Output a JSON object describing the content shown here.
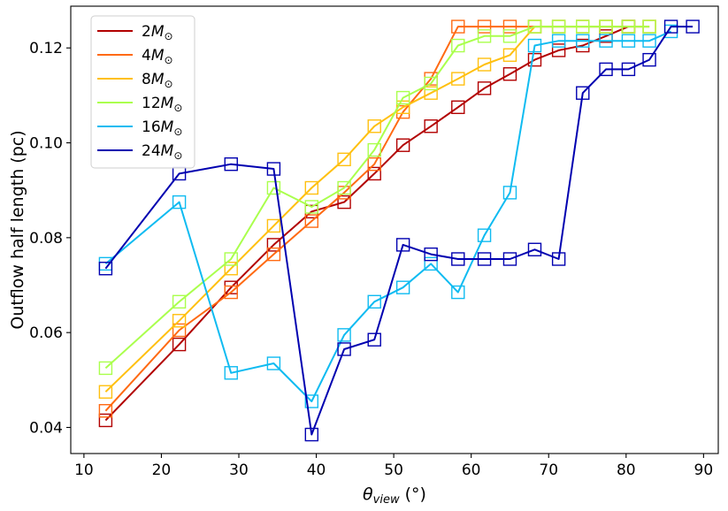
{
  "chart_data": {
    "type": "line",
    "title": "",
    "xlabel": {
      "main": "θ",
      "sub": "view",
      "unit": " (°)"
    },
    "ylabel": "Outflow half length (pc)",
    "xlim": [
      8.3,
      91.9
    ],
    "ylim": [
      0.0345,
      0.1288
    ],
    "xticks": [
      10,
      20,
      30,
      40,
      50,
      60,
      70,
      80,
      90
    ],
    "xtick_labels": [
      "10",
      "20",
      "30",
      "40",
      "50",
      "60",
      "70",
      "80",
      "90"
    ],
    "yticks": [
      0.04,
      0.06,
      0.08,
      0.1,
      0.12
    ],
    "ytick_labels": [
      "0.04",
      "0.06",
      "0.08",
      "0.10",
      "0.12"
    ],
    "grid": false,
    "legend_position": "upper-left",
    "marker": "hollow-square",
    "series": [
      {
        "name": "2",
        "label_suffix": "M⊙",
        "color": "#b20000",
        "x": [
          12.8,
          22.3,
          29.0,
          34.5,
          39.4,
          43.6,
          47.5,
          51.2,
          54.8,
          58.3,
          61.7,
          65.0,
          68.2,
          71.3,
          74.4,
          77.4,
          80.3
        ],
        "y": [
          0.0415,
          0.0575,
          0.0695,
          0.0785,
          0.0855,
          0.0875,
          0.0935,
          0.0995,
          0.1035,
          0.1075,
          0.1115,
          0.1145,
          0.1175,
          0.1195,
          0.1205,
          0.1225,
          0.1245
        ]
      },
      {
        "name": "4",
        "label_suffix": "M⊙",
        "color": "#ff6a13",
        "x": [
          12.8,
          22.3,
          29.0,
          34.5,
          39.4,
          43.6,
          47.5,
          51.2,
          54.8,
          58.3,
          61.7,
          65.0,
          68.2,
          71.3,
          74.4,
          77.4,
          80.3,
          83.0
        ],
        "y": [
          0.0435,
          0.0605,
          0.0685,
          0.0765,
          0.0835,
          0.0895,
          0.0955,
          0.1065,
          0.1135,
          0.1245,
          0.1245,
          0.1245,
          0.1245,
          0.1245,
          0.1245,
          0.1245,
          0.1245,
          0.1245
        ]
      },
      {
        "name": "8",
        "label_suffix": "M⊙",
        "color": "#ffc010",
        "x": [
          12.8,
          22.3,
          29.0,
          34.5,
          39.4,
          43.6,
          47.5,
          51.2,
          54.8,
          58.3,
          61.7,
          65.0,
          68.2,
          71.3,
          74.4,
          77.4,
          80.3,
          83.0
        ],
        "y": [
          0.0475,
          0.0625,
          0.0735,
          0.0825,
          0.0905,
          0.0965,
          0.1035,
          0.1075,
          0.1105,
          0.1135,
          0.1165,
          0.1185,
          0.1245,
          0.1245,
          0.1245,
          0.1245,
          0.1245,
          0.1245
        ]
      },
      {
        "name": "12",
        "label_suffix": "M⊙",
        "color": "#aaff4d",
        "x": [
          12.8,
          22.3,
          29.0,
          34.5,
          39.4,
          43.6,
          47.5,
          51.2,
          54.8,
          58.3,
          61.7,
          65.0,
          68.2,
          71.3,
          74.4,
          77.4,
          80.3,
          83.0
        ],
        "y": [
          0.0525,
          0.0665,
          0.0755,
          0.0905,
          0.0865,
          0.0905,
          0.0985,
          0.1095,
          0.1125,
          0.1205,
          0.1225,
          0.1225,
          0.1245,
          0.1245,
          0.1245,
          0.1245,
          0.1245,
          0.1245
        ]
      },
      {
        "name": "16",
        "label_suffix": "M⊙",
        "color": "#0fbbf1",
        "x": [
          12.8,
          22.3,
          29.0,
          34.5,
          39.4,
          43.6,
          47.5,
          51.2,
          54.8,
          58.3,
          61.7,
          65.0,
          68.2,
          71.3,
          74.4,
          77.4,
          80.3,
          83.0,
          85.8
        ],
        "y": [
          0.0745,
          0.0875,
          0.0515,
          0.0535,
          0.0455,
          0.0595,
          0.0665,
          0.0695,
          0.0745,
          0.0685,
          0.0805,
          0.0895,
          0.1205,
          0.1215,
          0.1215,
          0.1215,
          0.1215,
          0.1215,
          0.1235
        ]
      },
      {
        "name": "24",
        "label_suffix": "M⊙",
        "color": "#0000b0",
        "x": [
          12.8,
          22.3,
          29.0,
          34.5,
          39.4,
          43.6,
          47.5,
          51.2,
          54.8,
          58.3,
          61.7,
          65.0,
          68.2,
          71.3,
          74.4,
          77.4,
          80.3,
          83.0,
          85.8,
          88.6
        ],
        "y": [
          0.0735,
          0.0935,
          0.0955,
          0.0945,
          0.0385,
          0.0565,
          0.0585,
          0.0785,
          0.0765,
          0.0755,
          0.0755,
          0.0755,
          0.0775,
          0.0755,
          0.1105,
          0.1155,
          0.1155,
          0.1175,
          0.1245,
          0.1245
        ]
      }
    ]
  }
}
